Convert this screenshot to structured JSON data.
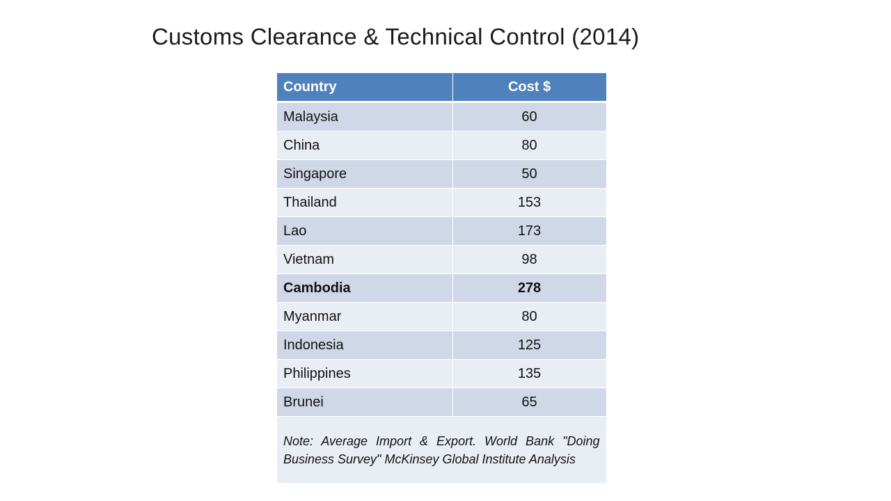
{
  "slide": {
    "title": "Customs Clearance & Technical Control (2014)"
  },
  "table": {
    "headers": {
      "country": "Country",
      "cost": "Cost $"
    },
    "rows": [
      {
        "country": "Malaysia",
        "cost": "60"
      },
      {
        "country": "China",
        "cost": "80"
      },
      {
        "country": "Singapore",
        "cost": "50"
      },
      {
        "country": "Thailand",
        "cost": "153"
      },
      {
        "country": "Lao",
        "cost": "173"
      },
      {
        "country": "Vietnam",
        "cost": "98"
      },
      {
        "country": "Cambodia",
        "cost": "278",
        "highlight": true
      },
      {
        "country": "Myanmar",
        "cost": "80"
      },
      {
        "country": "Indonesia",
        "cost": "125"
      },
      {
        "country": "Philippines",
        "cost": "135"
      },
      {
        "country": "Brunei",
        "cost": "65"
      }
    ],
    "note": "Note: Average Import & Export. World Bank \"Doing Business Survey\" McKinsey Global Institute Analysis"
  },
  "colors": {
    "header_bg": "#4f81bd",
    "row_odd_bg": "#d0d8e8",
    "row_even_bg": "#e9edf4"
  }
}
